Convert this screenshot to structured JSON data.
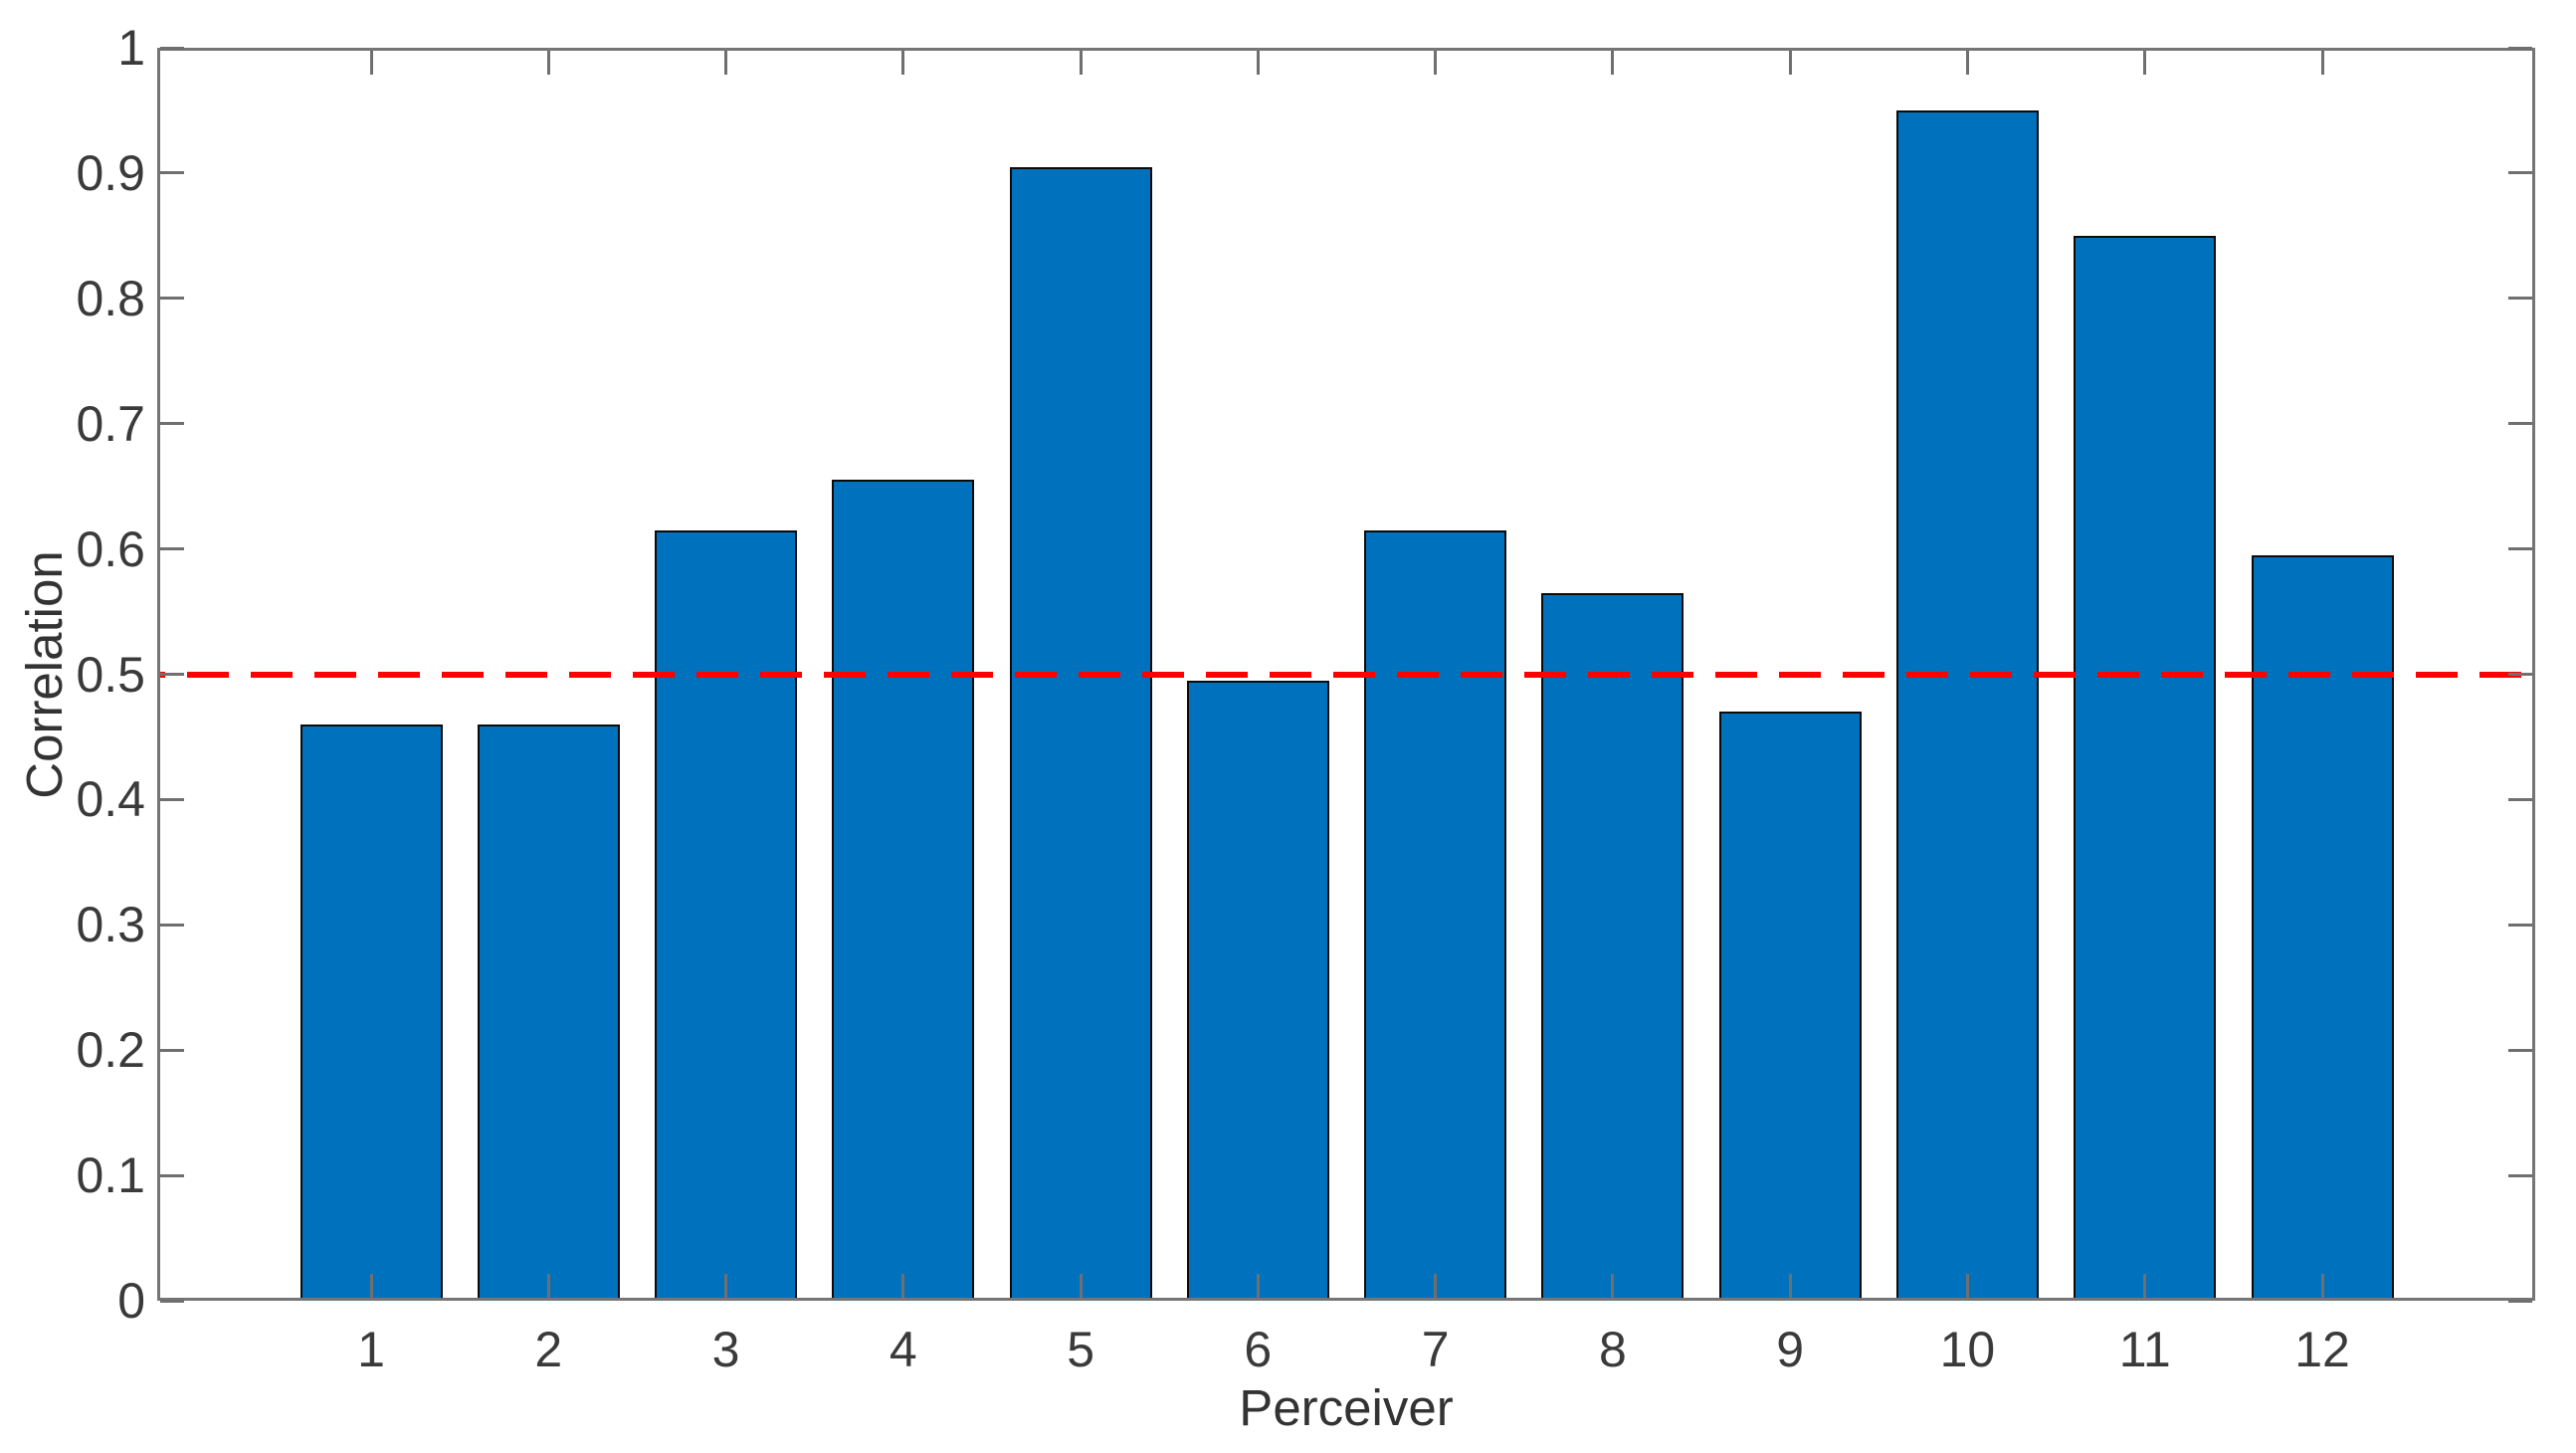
{
  "figure": {
    "background": "#FFFFFF"
  },
  "chart_data": {
    "type": "bar",
    "xlabel": "Perceiver",
    "ylabel": "Correlation",
    "categories": [
      "1",
      "2",
      "3",
      "4",
      "5",
      "6",
      "7",
      "8",
      "9",
      "10",
      "11",
      "12"
    ],
    "values": [
      0.46,
      0.46,
      0.615,
      0.655,
      0.905,
      0.495,
      0.615,
      0.565,
      0.47,
      0.95,
      0.85,
      0.595
    ],
    "ylim": [
      0,
      1
    ],
    "yticks": [
      "0",
      "0.1",
      "0.2",
      "0.3",
      "0.4",
      "0.5",
      "0.6",
      "0.7",
      "0.8",
      "0.9",
      "1"
    ],
    "grid": false,
    "legend": null,
    "bar_color": "#0072BD",
    "bar_edge_color": "#0B0B0B",
    "axis_color": "#757575",
    "tick_color": "#6F6F6F",
    "text_color": "#3A3A3A",
    "reference_line": {
      "y": 0.5,
      "color": "#FF0000",
      "style": "dashed"
    }
  }
}
